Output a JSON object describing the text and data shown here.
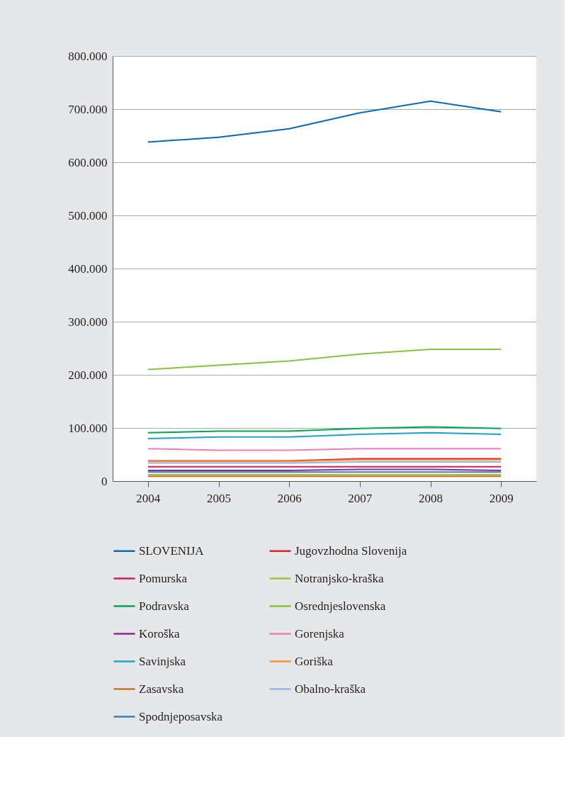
{
  "chart_data": {
    "type": "line",
    "categories": [
      "2004",
      "2005",
      "2006",
      "2007",
      "2008",
      "2009"
    ],
    "ylim": [
      0,
      800000
    ],
    "yticks": [
      {
        "value": 0,
        "label": "0"
      },
      {
        "value": 100000,
        "label": "100.000"
      },
      {
        "value": 200000,
        "label": "200.000"
      },
      {
        "value": 300000,
        "label": "300.000"
      },
      {
        "value": 400000,
        "label": "400.000"
      },
      {
        "value": 500000,
        "label": "500.000"
      },
      {
        "value": 600000,
        "label": "600.000"
      },
      {
        "value": 700000,
        "label": "700.000"
      },
      {
        "value": 800000,
        "label": "800.000"
      }
    ],
    "grid": "y",
    "legend": "bottom",
    "marker": "none",
    "line_style": "solid",
    "series": [
      {
        "name": "SLOVENIJA",
        "color": "#0a6ab5",
        "values": [
          638000,
          647000,
          663000,
          693000,
          715000,
          695000
        ]
      },
      {
        "name": "Jugovzhodna Slovenija",
        "color": "#e8202a",
        "values": [
          38000,
          38000,
          38000,
          42000,
          42000,
          42000
        ]
      },
      {
        "name": "Pomurska",
        "color": "#c8205a",
        "values": [
          27000,
          27000,
          27000,
          27000,
          27000,
          27000
        ]
      },
      {
        "name": "Notranjsko-kraška",
        "color": "#9ac43c",
        "values": [
          12000,
          12000,
          12000,
          12000,
          12000,
          12000
        ]
      },
      {
        "name": "Podravska",
        "color": "#00a651",
        "values": [
          91000,
          94000,
          94000,
          99000,
          102000,
          99000
        ]
      },
      {
        "name": "Osrednjeslovenska",
        "color": "#86c440",
        "values": [
          210000,
          218000,
          226000,
          239000,
          248000,
          248000
        ]
      },
      {
        "name": "Koroška",
        "color": "#8e2a8e",
        "values": [
          20000,
          20000,
          20000,
          22000,
          22000,
          20000
        ]
      },
      {
        "name": "Gorenjska",
        "color": "#f27eb0",
        "values": [
          61000,
          58000,
          58000,
          61000,
          61000,
          61000
        ]
      },
      {
        "name": "Savinjska",
        "color": "#1ca5c4",
        "values": [
          80000,
          83000,
          83000,
          88000,
          91000,
          88000
        ]
      },
      {
        "name": "Goriška",
        "color": "#f7923a",
        "values": [
          37000,
          37000,
          37000,
          40000,
          40000,
          40000
        ]
      },
      {
        "name": "Zasavska",
        "color": "#d2701f",
        "values": [
          9000,
          9000,
          9000,
          9000,
          9000,
          9000
        ]
      },
      {
        "name": "Obalno-kraška",
        "color": "#94b6e0",
        "values": [
          34000,
          34000,
          34000,
          36000,
          36000,
          36000
        ]
      },
      {
        "name": "Spodnjeposavska",
        "color": "#3a7cc4",
        "values": [
          17000,
          17000,
          17000,
          17000,
          17000,
          17000
        ]
      }
    ]
  }
}
